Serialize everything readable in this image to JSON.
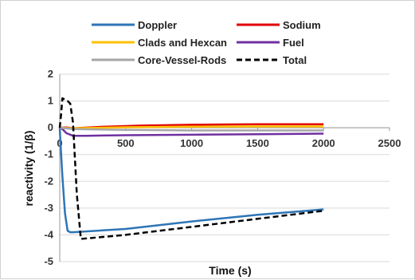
{
  "chart_data": {
    "type": "line",
    "title": "",
    "xlabel": "Time (s)",
    "ylabel": "reactivity (1/β)",
    "xlim": [
      0,
      2500
    ],
    "ylim": [
      -5,
      2
    ],
    "x_ticks": [
      "0",
      "500",
      "1000",
      "1500",
      "2000",
      "2500"
    ],
    "y_ticks": [
      "2",
      "1",
      "0",
      "-1",
      "-2",
      "-3",
      "-4",
      "-5"
    ],
    "grid": true,
    "legend": "top",
    "series": [
      {
        "name": "Doppler",
        "color": "#2e75b6",
        "dash": "solid",
        "x": [
          0,
          5,
          20,
          40,
          60,
          80,
          100,
          500,
          1000,
          1500,
          2000
        ],
        "y": [
          0,
          -0.5,
          -1.8,
          -3.2,
          -3.85,
          -3.9,
          -3.9,
          -3.78,
          -3.5,
          -3.25,
          -3.05
        ]
      },
      {
        "name": "Sodium",
        "color": "#e00000",
        "dash": "solid",
        "x": [
          0,
          50,
          100,
          300,
          600,
          1000,
          1500,
          2000
        ],
        "y": [
          0,
          0.01,
          -0.02,
          0.03,
          0.08,
          0.11,
          0.13,
          0.13
        ]
      },
      {
        "name": "Clads and Hexcan",
        "color": "#ffc000",
        "dash": "solid",
        "x": [
          0,
          100,
          500,
          1000,
          1500,
          2000
        ],
        "y": [
          0,
          -0.02,
          0.02,
          0.04,
          0.05,
          0.05
        ]
      },
      {
        "name": "Fuel",
        "color": "#7030a0",
        "dash": "solid",
        "x": [
          0,
          20,
          50,
          100,
          200,
          500,
          1000,
          1500,
          2000
        ],
        "y": [
          0,
          -0.05,
          -0.2,
          -0.3,
          -0.3,
          -0.28,
          -0.26,
          -0.24,
          -0.22
        ]
      },
      {
        "name": "Core-Vessel-Rods",
        "color": "#a6a6a6",
        "dash": "solid",
        "x": [
          0,
          100,
          500,
          1000,
          1500,
          2000
        ],
        "y": [
          0,
          -0.05,
          -0.08,
          -0.1,
          -0.1,
          -0.1
        ]
      },
      {
        "name": "Total",
        "color": "#000000",
        "dash": "dashed",
        "x": [
          0,
          10,
          20,
          40,
          60,
          80,
          100,
          130,
          160,
          500,
          1000,
          1500,
          2000
        ],
        "y": [
          0,
          0.5,
          1.1,
          1.05,
          1.0,
          0.9,
          0.2,
          -2.5,
          -4.15,
          -4.0,
          -3.7,
          -3.4,
          -3.1
        ]
      }
    ]
  }
}
